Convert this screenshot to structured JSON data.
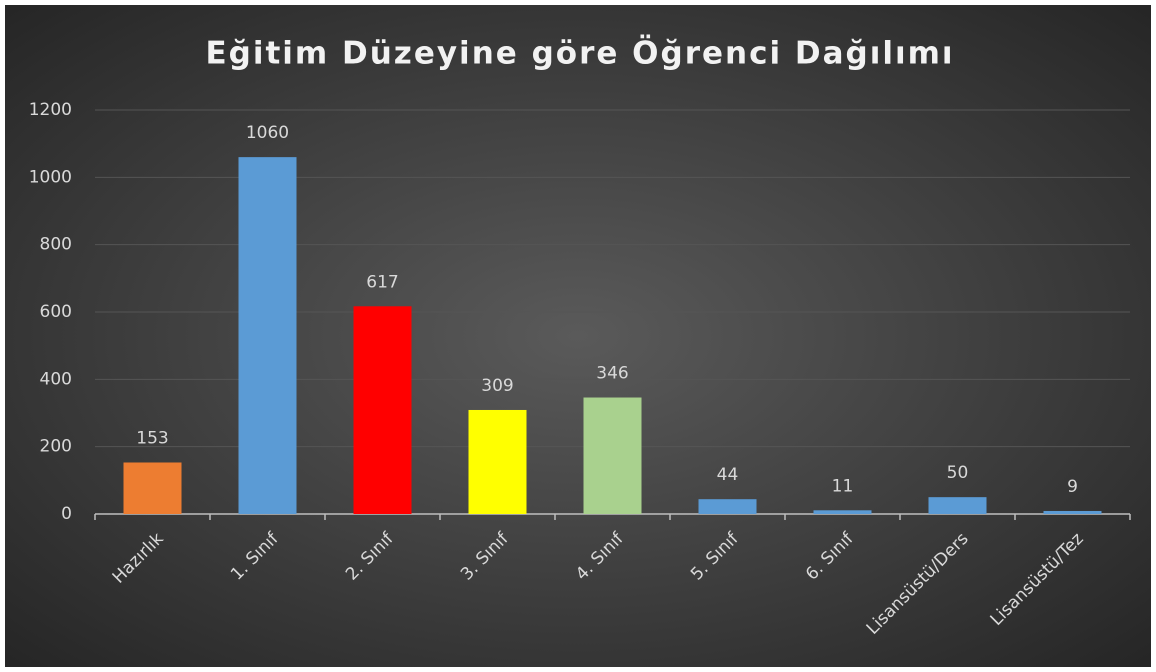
{
  "chart_data": {
    "type": "bar",
    "title": "Eğitim Düzeyine göre Öğrenci Dağılımı",
    "categories": [
      "Hazırlık",
      "1. Sınıf",
      "2. Sınıf",
      "3. Sınıf",
      "4. Sınıf",
      "5. Sınıf",
      "6. Sınıf",
      "Lisansüstü/Ders",
      "Lisansüstü/Tez"
    ],
    "values": [
      153,
      1060,
      617,
      309,
      346,
      44,
      11,
      50,
      9
    ],
    "colors": [
      "#ed7d31",
      "#5b9bd5",
      "#ff0000",
      "#ffff00",
      "#a9d18e",
      "#5b9bd5",
      "#5b9bd5",
      "#5b9bd5",
      "#5b9bd5"
    ],
    "ylim": [
      0,
      1200
    ],
    "yticks": [
      0,
      200,
      400,
      600,
      800,
      1000,
      1200
    ],
    "grid": true
  }
}
